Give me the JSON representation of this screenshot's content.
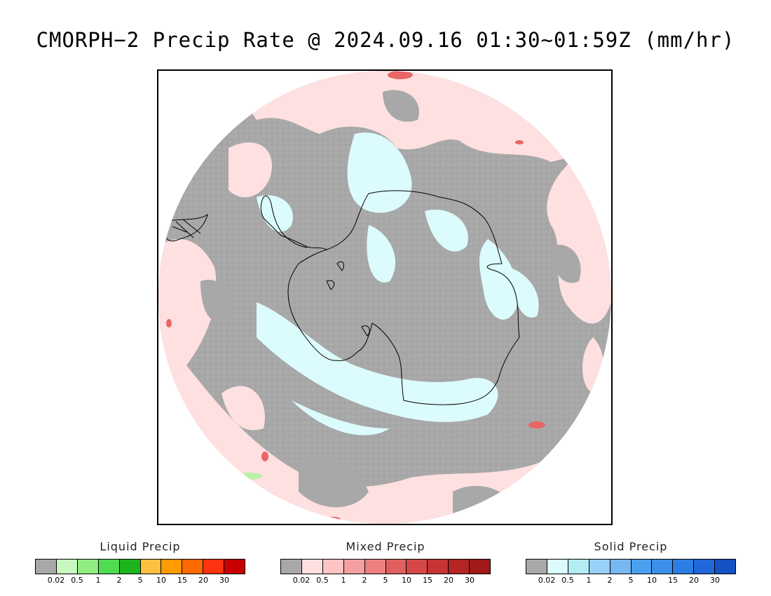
{
  "title": "CMORPH−2 Precip Rate @ 2024.09.16 01:30~01:59Z (mm/hr)",
  "map": {
    "projection": "south-polar-stereographic",
    "colors": {
      "no_precip_gray": "#a8a8a8",
      "mixed_light_pink": "#ffe0e0",
      "solid_light_cyan": "#dcfbfc",
      "mixed_red_spots": "#e86666",
      "liquid_green_spot": "#b8f0a8",
      "coastline": "#000000"
    }
  },
  "legends": [
    {
      "id": "liquid",
      "title": "Liquid Precip",
      "colors": [
        "#a8a8a8",
        "#c8f8c0",
        "#90ee80",
        "#50dc50",
        "#1eb41e",
        "#ffc040",
        "#ff9a00",
        "#ff6a00",
        "#ff3210",
        "#c80000"
      ],
      "ticks": [
        "0.02",
        "0.5",
        "1",
        "2",
        "5",
        "10",
        "15",
        "20",
        "30"
      ]
    },
    {
      "id": "mixed",
      "title": "Mixed Precip",
      "colors": [
        "#a8a8a8",
        "#ffe0e0",
        "#ffc4c4",
        "#f4a0a0",
        "#ec8080",
        "#e06060",
        "#d44848",
        "#c83434",
        "#b42424",
        "#a01818"
      ],
      "ticks": [
        "0.02",
        "0.5",
        "1",
        "2",
        "5",
        "10",
        "15",
        "20",
        "30"
      ]
    },
    {
      "id": "solid",
      "title": "Solid Precip",
      "colors": [
        "#a8a8a8",
        "#dcfbfc",
        "#b4ecf4",
        "#98d0f8",
        "#78b8f0",
        "#4ca0f0",
        "#3c90ea",
        "#2c7ee4",
        "#2068da",
        "#1452c4"
      ],
      "ticks": [
        "0.02",
        "0.5",
        "1",
        "2",
        "5",
        "10",
        "15",
        "20",
        "30"
      ]
    }
  ]
}
